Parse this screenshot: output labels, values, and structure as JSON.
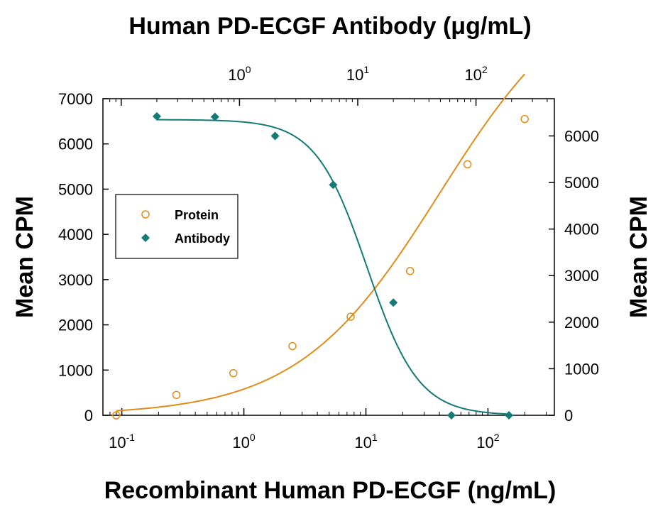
{
  "chart_data": {
    "type": "scatter",
    "title": "Human PD-ECGF Antibody (μg/mL)",
    "xlabel": "Recombinant Human PD-ECGF (ng/mL)",
    "ylabel_left": "Mean CPM",
    "ylabel_right": "Mean CPM",
    "x_scale": "log",
    "xlim": [
      0.07,
      350
    ],
    "ylim_left": [
      0,
      7000
    ],
    "ylim_right": [
      0,
      6800
    ],
    "grid": false,
    "legend_position": "left-middle",
    "bottom_ticks": [
      {
        "value": 0.1,
        "base": "10",
        "exp": "-1"
      },
      {
        "value": 1,
        "base": "10",
        "exp": "0"
      },
      {
        "value": 10,
        "base": "10",
        "exp": "1"
      },
      {
        "value": 100,
        "base": "10",
        "exp": "2"
      }
    ],
    "top_ticks": [
      {
        "value": 1,
        "base": "10",
        "exp": "0"
      },
      {
        "value": 10,
        "base": "10",
        "exp": "1"
      },
      {
        "value": 100,
        "base": "10",
        "exp": "2"
      }
    ],
    "top_xlim": [
      0.07,
      460
    ],
    "left_ticks": [
      0,
      1000,
      2000,
      3000,
      4000,
      5000,
      6000,
      7000
    ],
    "right_ticks": [
      0,
      1000,
      2000,
      3000,
      4000,
      5000,
      6000
    ],
    "series": [
      {
        "name": "Protein",
        "axis": "bottom-left",
        "color": "#e08c1a",
        "marker": "open-circle",
        "x": [
          0.09,
          0.28,
          0.82,
          2.5,
          7.5,
          23,
          68,
          200
        ],
        "y": [
          0,
          450,
          930,
          1530,
          2180,
          3190,
          5550,
          6550
        ],
        "fit": {
          "bottom": 0,
          "top": 9800,
          "ec50": 40,
          "hill": 0.75,
          "x_from": 0.09,
          "x_to": 200
        }
      },
      {
        "name": "Antibody",
        "axis": "top-right",
        "color": "#137a76",
        "marker": "filled-diamond",
        "x": [
          0.2,
          0.62,
          2.0,
          6.2,
          20,
          62,
          190
        ],
        "y": [
          6420,
          6410,
          6000,
          4950,
          2420,
          0,
          0
        ],
        "fit": {
          "bottom": 0,
          "top": 6350,
          "ec50": 12,
          "hill": 2.0,
          "x_from": 0.2,
          "x_to": 190
        }
      }
    ]
  }
}
